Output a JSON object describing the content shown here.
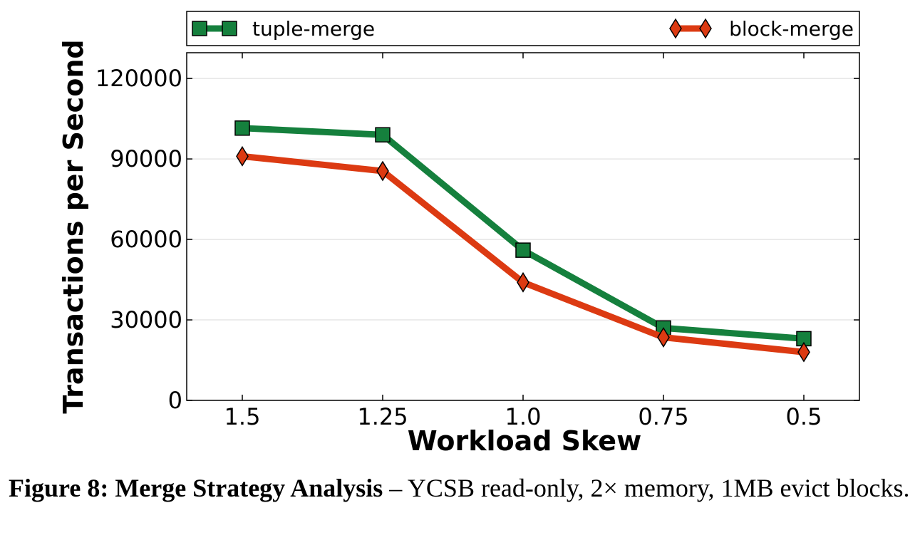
{
  "chart_data": {
    "type": "line",
    "xlabel": "Workload Skew",
    "ylabel": "Transactions per Second",
    "categories": [
      "1.5",
      "1.25",
      "1.0",
      "0.75",
      "0.5"
    ],
    "yticks": [
      "0",
      "30000",
      "60000",
      "90000",
      "120000"
    ],
    "ylim": [
      0,
      120000
    ],
    "grid": true,
    "legend_position": "top",
    "series": [
      {
        "name": "tuple-merge",
        "color": "#15803d",
        "marker": "square",
        "values": [
          101500,
          99000,
          56000,
          27000,
          23000
        ]
      },
      {
        "name": "block-merge",
        "color": "#dc3a12",
        "marker": "diamond",
        "values": [
          91000,
          85500,
          44000,
          23500,
          18000
        ]
      }
    ]
  },
  "caption": {
    "label": "Figure 8:",
    "title": "Merge Strategy Analysis",
    "text": " – YCSB read-only, 2× memory, 1MB evict blocks."
  }
}
